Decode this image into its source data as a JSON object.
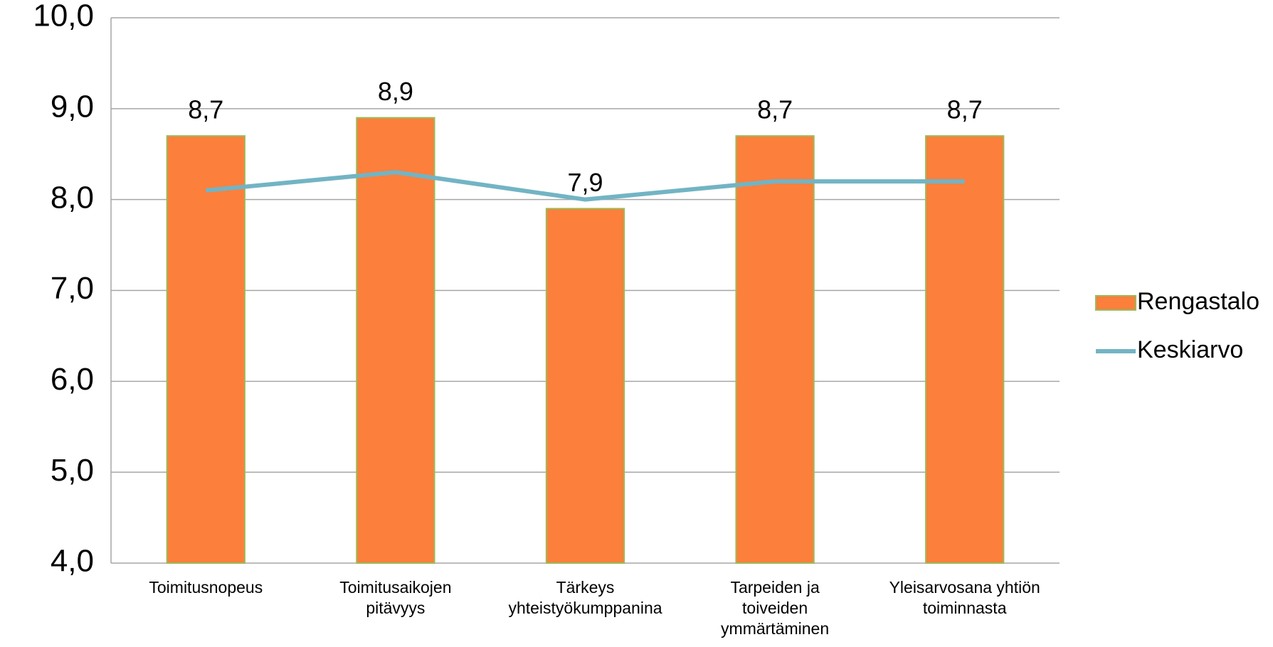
{
  "chart_data": {
    "type": "bar-line",
    "categories": [
      [
        "Toimitusnopeus"
      ],
      [
        "Toimitusaikojen",
        "pitävyys"
      ],
      [
        "Tärkeys",
        "yhteistyökumppanina"
      ],
      [
        "Tarpeiden ja",
        "toiveiden",
        "ymmärtäminen"
      ],
      [
        "Yleisarvosana yhtiön",
        "toiminnasta"
      ]
    ],
    "series": [
      {
        "name": "Rengastalo",
        "kind": "bar",
        "color": "#fd7f3c",
        "edge": "#9bbb59",
        "values": [
          8.7,
          8.9,
          7.9,
          8.7,
          8.7
        ],
        "value_labels": [
          "8,7",
          "8,9",
          "7,9",
          "8,7",
          "8,7"
        ]
      },
      {
        "name": "Keskiarvo",
        "kind": "line",
        "color": "#72b4c4",
        "values": [
          8.1,
          8.3,
          8.0,
          8.2,
          8.2
        ]
      }
    ],
    "ylim": [
      4,
      10
    ],
    "yticks": [
      {
        "value": 4,
        "label": "4,0"
      },
      {
        "value": 5,
        "label": "5,0"
      },
      {
        "value": 6,
        "label": "6,0"
      },
      {
        "value": 7,
        "label": "7,0"
      },
      {
        "value": 8,
        "label": "8,0"
      },
      {
        "value": 9,
        "label": "9,0"
      },
      {
        "value": 10,
        "label": "10,0"
      }
    ],
    "grid": true,
    "legend": "right"
  }
}
